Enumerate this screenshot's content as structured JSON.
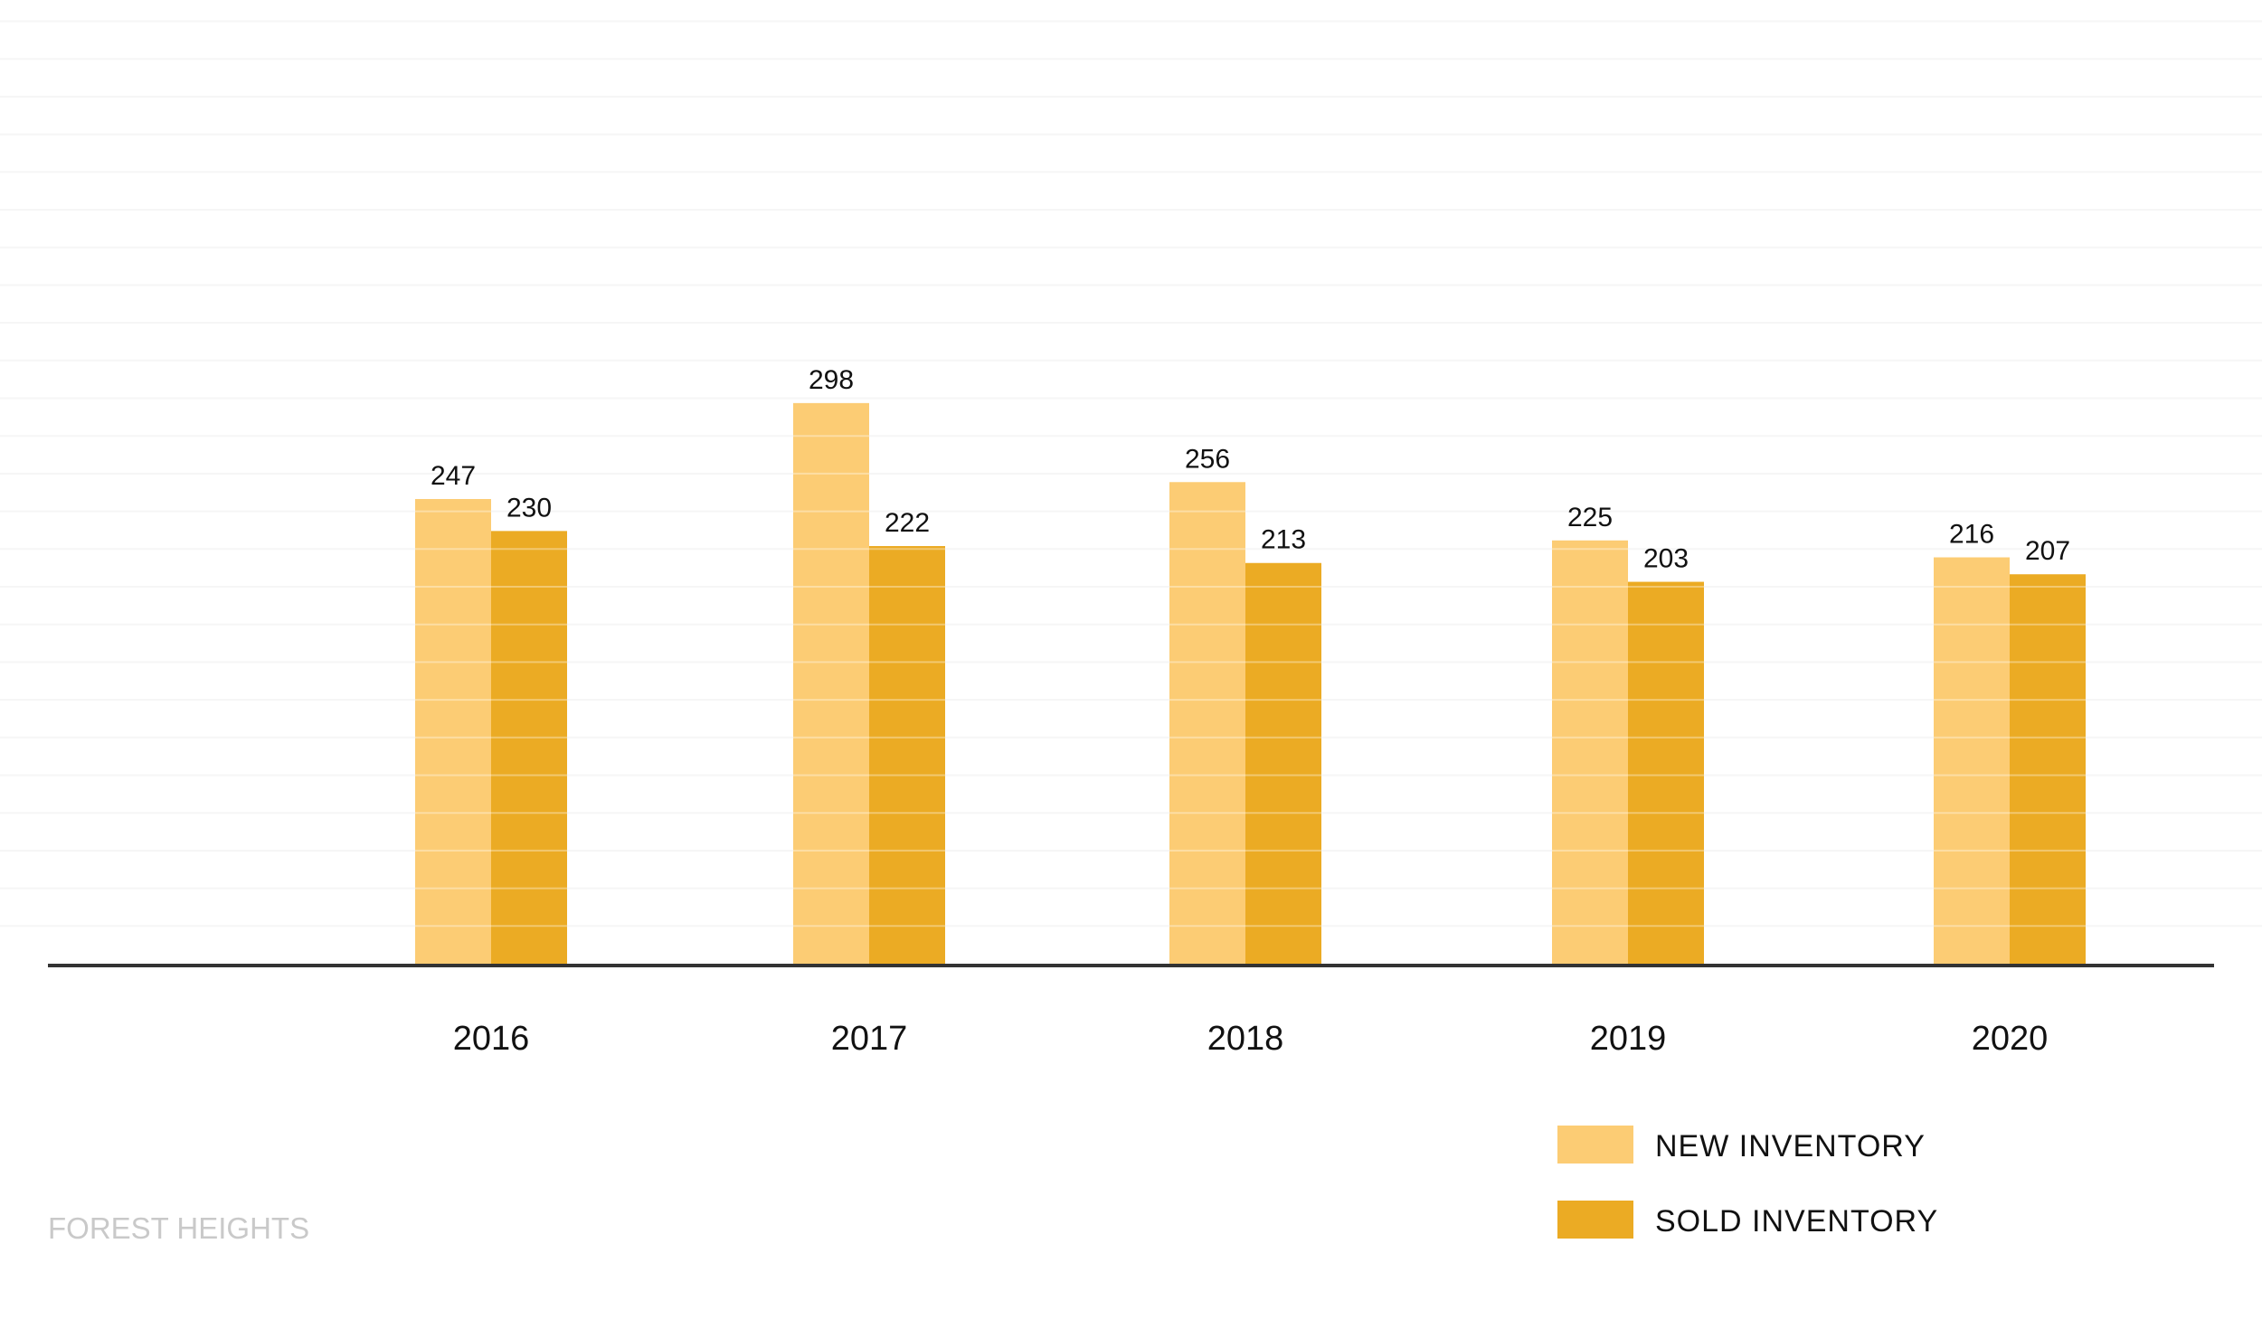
{
  "footer": {
    "label": "FOREST HEIGHTS"
  },
  "colors": {
    "new_inventory": "#fccc74",
    "sold_inventory": "#ebab24",
    "axis": "#333333",
    "grid": "#f2f2f2",
    "text": "#111111",
    "footer_text": "#c9c9c9"
  },
  "chart_data": {
    "type": "bar",
    "categories": [
      "2016",
      "2017",
      "2018",
      "2019",
      "2020"
    ],
    "series": [
      {
        "name": "NEW INVENTORY",
        "values": [
          247,
          298,
          256,
          225,
          216
        ]
      },
      {
        "name": "SOLD INVENTORY",
        "values": [
          230,
          222,
          213,
          203,
          207
        ]
      }
    ],
    "title": "",
    "xlabel": "",
    "ylabel": "",
    "ylim": [
      0,
      480
    ],
    "grid": true,
    "legend": "bottom-right",
    "data_labels": true
  }
}
